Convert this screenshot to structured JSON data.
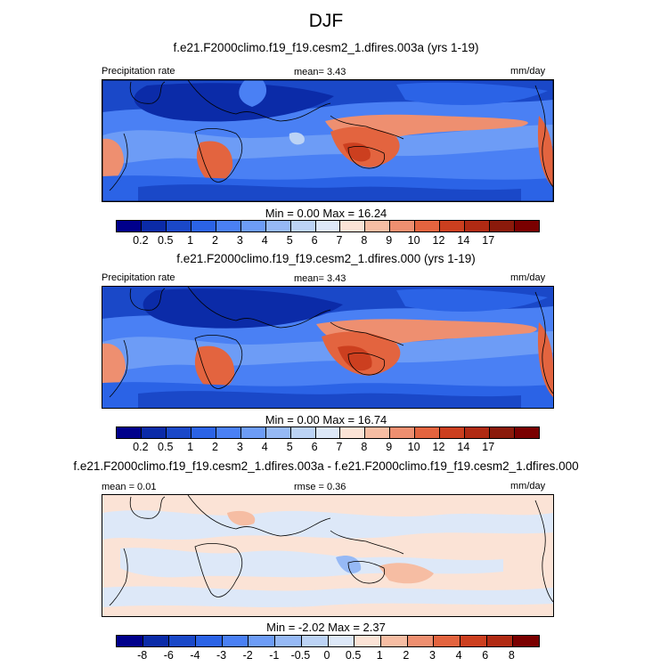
{
  "title": "DJF",
  "colors": {
    "precip_scale": [
      "#00008b",
      "#0b2ba8",
      "#1a48c8",
      "#2b63e6",
      "#4a80f4",
      "#6d9cf6",
      "#96b9f5",
      "#bcd3f5",
      "#dde8f8",
      "#fbe3d6",
      "#f6bda3",
      "#ee8f70",
      "#e3643f",
      "#cc3f1f",
      "#b02a13",
      "#8b1a0b",
      "#7a0000"
    ],
    "diff_scale": [
      "#00008b",
      "#0b2ba8",
      "#1a48c8",
      "#2b63e6",
      "#4a80f4",
      "#6d9cf6",
      "#96b9f5",
      "#bcd3f5",
      "#dde8f8",
      "#fbe3d6",
      "#f6bda3",
      "#ee8f70",
      "#e3643f",
      "#cc3f1f",
      "#b02a13",
      "#7a0000"
    ]
  },
  "panels": [
    {
      "title": "f.e21.F2000climo.f19_f19.cesm2_1.dfires.003a (yrs 1-19)",
      "left_label": "Precipitation rate",
      "center_label": "mean=   3.43",
      "right_label": "mm/day",
      "minmax": "Min =   0.00 Max =  16.24",
      "ticks": [
        "0.2",
        "0.5",
        "1",
        "2",
        "3",
        "4",
        "5",
        "6",
        "7",
        "8",
        "9",
        "10",
        "12",
        "14",
        "17"
      ]
    },
    {
      "title": "f.e21.F2000climo.f19_f19.cesm2_1.dfires.000 (yrs 1-19)",
      "left_label": "Precipitation rate",
      "center_label": "mean=   3.43",
      "right_label": "mm/day",
      "minmax": "Min =   0.00 Max =  16.74",
      "ticks": [
        "0.2",
        "0.5",
        "1",
        "2",
        "3",
        "4",
        "5",
        "6",
        "7",
        "8",
        "9",
        "10",
        "12",
        "14",
        "17"
      ]
    },
    {
      "title": "f.e21.F2000climo.f19_f19.cesm2_1.dfires.003a - f.e21.F2000climo.f19_f19.cesm2_1.dfires.000",
      "left_label": "mean =   0.01",
      "center_label": "rmse =   0.36",
      "right_label": "mm/day",
      "minmax": "Min =  -2.02 Max =   2.37",
      "ticks": [
        "-8",
        "-6",
        "-4",
        "-3",
        "-2",
        "-1",
        "-0.5",
        "0",
        "0.5",
        "1",
        "2",
        "3",
        "4",
        "6",
        "8"
      ]
    }
  ],
  "chart_data": [
    {
      "type": "heatmap",
      "title": "f.e21.F2000climo.f19_f19.cesm2_1.dfires.003a (yrs 1-19)",
      "variable": "Precipitation rate",
      "units": "mm/day",
      "mean": 3.43,
      "min": 0.0,
      "max": 16.24,
      "contour_levels": [
        0.2,
        0.5,
        1,
        2,
        3,
        4,
        5,
        6,
        7,
        8,
        9,
        10,
        12,
        14,
        17
      ]
    },
    {
      "type": "heatmap",
      "title": "f.e21.F2000climo.f19_f19.cesm2_1.dfires.000 (yrs 1-19)",
      "variable": "Precipitation rate",
      "units": "mm/day",
      "mean": 3.43,
      "min": 0.0,
      "max": 16.74,
      "contour_levels": [
        0.2,
        0.5,
        1,
        2,
        3,
        4,
        5,
        6,
        7,
        8,
        9,
        10,
        12,
        14,
        17
      ]
    },
    {
      "type": "heatmap",
      "title": "f.e21.F2000climo.f19_f19.cesm2_1.dfires.003a - f.e21.F2000climo.f19_f19.cesm2_1.dfires.000",
      "units": "mm/day",
      "mean": 0.01,
      "rmse": 0.36,
      "min": -2.02,
      "max": 2.37,
      "contour_levels": [
        -8,
        -6,
        -4,
        -3,
        -2,
        -1,
        -0.5,
        0,
        0.5,
        1,
        2,
        3,
        4,
        6,
        8
      ]
    }
  ]
}
